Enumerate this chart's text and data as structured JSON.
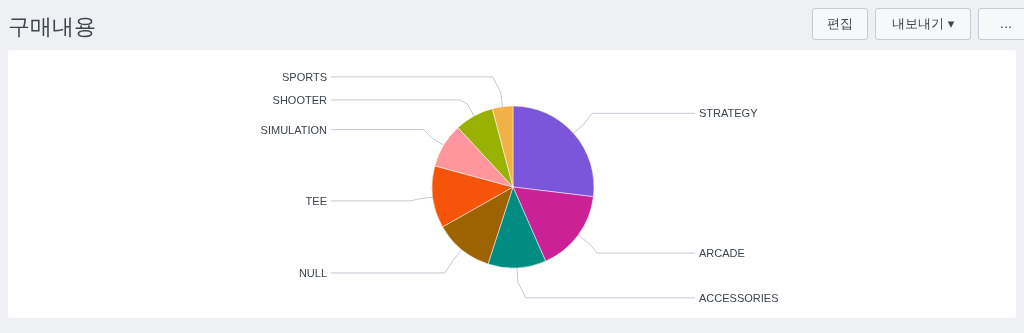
{
  "chart_data": {
    "type": "pie",
    "title": "구매내용",
    "categories": [
      "STRATEGY",
      "ARCADE",
      "ACCESSORIES",
      "NULL",
      "TEE",
      "SIMULATION",
      "SHOOTER",
      "SPORTS"
    ],
    "values": [
      26.9,
      16.5,
      11.6,
      11.8,
      12.4,
      8.9,
      7.8,
      4.1
    ],
    "colors": [
      "#7b56db",
      "#cb2196",
      "#008c80",
      "#9d6300",
      "#f6540b",
      "#ff969e",
      "#99b100",
      "#f2b146"
    ],
    "annotations": [
      "편집",
      "내보내기 ▾",
      "..."
    ],
    "legend": false
  }
}
